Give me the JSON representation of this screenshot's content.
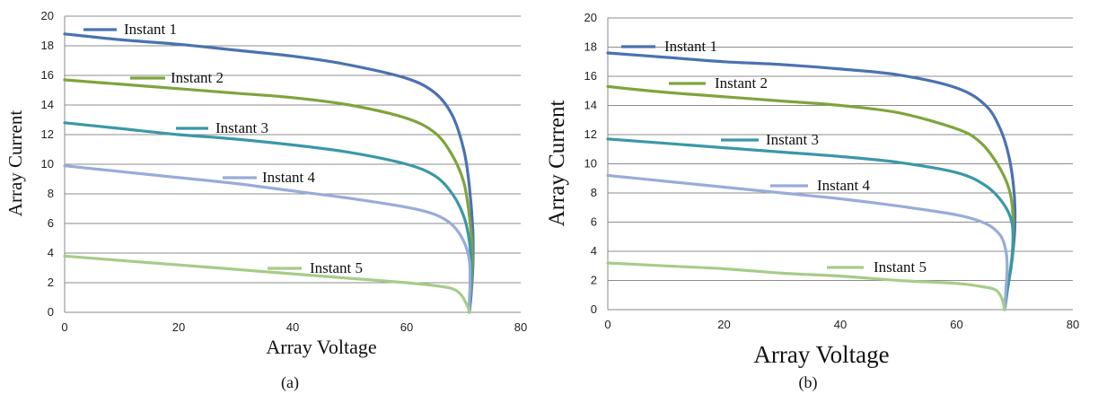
{
  "chart_data": [
    {
      "type": "line",
      "panel_label": "(a)",
      "xlabel": "Array Voltage",
      "ylabel": "Array Current",
      "xlim": [
        0,
        80
      ],
      "ylim": [
        0,
        20
      ],
      "xticks": [
        "0",
        "20",
        "40",
        "60",
        "80"
      ],
      "yticks": [
        "0",
        "2",
        "4",
        "6",
        "8",
        "10",
        "12",
        "14",
        "16",
        "18",
        "20"
      ],
      "grid": "horizontal",
      "legend": "inline labels",
      "series": [
        {
          "name": "Instant 1",
          "color": "#4a72b0",
          "points": [
            [
              0,
              18.8
            ],
            [
              10,
              18.4
            ],
            [
              20,
              18.1
            ],
            [
              30,
              17.7
            ],
            [
              40,
              17.3
            ],
            [
              50,
              16.7
            ],
            [
              60,
              15.8
            ],
            [
              65,
              14.8
            ],
            [
              68,
              13.3
            ],
            [
              70,
              11.0
            ],
            [
              71,
              8.5
            ],
            [
              71.6,
              5.5
            ],
            [
              71.6,
              3.0
            ],
            [
              71.3,
              1.2
            ],
            [
              71.0,
              0
            ]
          ]
        },
        {
          "name": "Instant 2",
          "color": "#7fa43c",
          "points": [
            [
              0,
              15.7
            ],
            [
              10,
              15.4
            ],
            [
              20,
              15.1
            ],
            [
              30,
              14.8
            ],
            [
              40,
              14.5
            ],
            [
              50,
              14.0
            ],
            [
              60,
              13.1
            ],
            [
              65,
              12.1
            ],
            [
              68,
              10.6
            ],
            [
              70,
              8.8
            ],
            [
              71,
              6.5
            ],
            [
              71.5,
              4.0
            ],
            [
              71.4,
              2.0
            ],
            [
              71.1,
              0.8
            ],
            [
              71.0,
              0
            ]
          ]
        },
        {
          "name": "Instant 3",
          "color": "#3a98a8",
          "points": [
            [
              0,
              12.8
            ],
            [
              10,
              12.4
            ],
            [
              20,
              12.0
            ],
            [
              30,
              11.7
            ],
            [
              40,
              11.3
            ],
            [
              50,
              10.8
            ],
            [
              60,
              10.0
            ],
            [
              65,
              9.2
            ],
            [
              68,
              8.0
            ],
            [
              70,
              6.5
            ],
            [
              71,
              4.8
            ],
            [
              71.3,
              3.0
            ],
            [
              71.2,
              1.5
            ],
            [
              71.0,
              0
            ]
          ]
        },
        {
          "name": "Instant 4",
          "color": "#98acd8",
          "points": [
            [
              0,
              9.9
            ],
            [
              10,
              9.5
            ],
            [
              20,
              9.1
            ],
            [
              30,
              8.7
            ],
            [
              40,
              8.2
            ],
            [
              50,
              7.7
            ],
            [
              60,
              7.1
            ],
            [
              65,
              6.6
            ],
            [
              68,
              5.9
            ],
            [
              70,
              4.8
            ],
            [
              71,
              3.5
            ],
            [
              71.1,
              2.0
            ],
            [
              71.0,
              0.8
            ],
            [
              71.0,
              0
            ]
          ]
        },
        {
          "name": "Instant 5",
          "color": "#a6cc8a",
          "points": [
            [
              0,
              3.8
            ],
            [
              10,
              3.5
            ],
            [
              20,
              3.2
            ],
            [
              30,
              2.9
            ],
            [
              40,
              2.6
            ],
            [
              50,
              2.3
            ],
            [
              60,
              2.0
            ],
            [
              65,
              1.8
            ],
            [
              68,
              1.6
            ],
            [
              69.5,
              1.2
            ],
            [
              70.3,
              0.7
            ],
            [
              70.8,
              0.3
            ],
            [
              71.0,
              0
            ]
          ]
        }
      ]
    },
    {
      "type": "line",
      "panel_label": "(b)",
      "xlabel": "Array Voltage",
      "ylabel": "Array Current",
      "xlim": [
        0,
        80
      ],
      "ylim": [
        0,
        20
      ],
      "xticks": [
        "0",
        "20",
        "40",
        "60",
        "80"
      ],
      "yticks": [
        "0",
        "2",
        "4",
        "6",
        "8",
        "10",
        "12",
        "14",
        "16",
        "18",
        "20"
      ],
      "grid": "horizontal",
      "legend": "inline labels",
      "series": [
        {
          "name": "Instant 1",
          "color": "#4a72b0",
          "points": [
            [
              0,
              17.6
            ],
            [
              10,
              17.3
            ],
            [
              20,
              17.0
            ],
            [
              30,
              16.8
            ],
            [
              40,
              16.5
            ],
            [
              50,
              16.1
            ],
            [
              60,
              15.2
            ],
            [
              65,
              14.0
            ],
            [
              67.5,
              12.4
            ],
            [
              69,
              10.5
            ],
            [
              69.9,
              8.0
            ],
            [
              70.0,
              5.5
            ],
            [
              69.4,
              3.0
            ],
            [
              68.6,
              1.2
            ],
            [
              68.2,
              0
            ]
          ]
        },
        {
          "name": "Instant 2",
          "color": "#7fa43c",
          "points": [
            [
              0,
              15.3
            ],
            [
              10,
              14.9
            ],
            [
              20,
              14.6
            ],
            [
              30,
              14.3
            ],
            [
              40,
              14.0
            ],
            [
              50,
              13.5
            ],
            [
              60,
              12.4
            ],
            [
              64,
              11.5
            ],
            [
              67,
              10.0
            ],
            [
              69,
              8.3
            ],
            [
              69.7,
              6.5
            ],
            [
              69.6,
              4.0
            ],
            [
              69.0,
              2.0
            ],
            [
              68.4,
              0.8
            ],
            [
              68.2,
              0
            ]
          ]
        },
        {
          "name": "Instant 3",
          "color": "#3a98a8",
          "points": [
            [
              0,
              11.7
            ],
            [
              10,
              11.4
            ],
            [
              20,
              11.1
            ],
            [
              30,
              10.8
            ],
            [
              40,
              10.5
            ],
            [
              50,
              10.1
            ],
            [
              60,
              9.4
            ],
            [
              65,
              8.5
            ],
            [
              68,
              7.3
            ],
            [
              69.5,
              6.0
            ],
            [
              69.7,
              4.5
            ],
            [
              69.3,
              2.8
            ],
            [
              68.7,
              1.2
            ],
            [
              68.3,
              0
            ]
          ]
        },
        {
          "name": "Instant 4",
          "color": "#98acd8",
          "points": [
            [
              0,
              9.2
            ],
            [
              10,
              8.8
            ],
            [
              20,
              8.4
            ],
            [
              30,
              8.0
            ],
            [
              40,
              7.6
            ],
            [
              50,
              7.1
            ],
            [
              60,
              6.5
            ],
            [
              65,
              5.9
            ],
            [
              67.5,
              5.1
            ],
            [
              68.5,
              4.0
            ],
            [
              68.7,
              2.8
            ],
            [
              68.5,
              1.5
            ],
            [
              68.3,
              0
            ]
          ]
        },
        {
          "name": "Instant 5",
          "color": "#a6cc8a",
          "points": [
            [
              0,
              3.2
            ],
            [
              10,
              3.0
            ],
            [
              20,
              2.8
            ],
            [
              30,
              2.5
            ],
            [
              40,
              2.3
            ],
            [
              50,
              2.0
            ],
            [
              60,
              1.8
            ],
            [
              64,
              1.6
            ],
            [
              66.5,
              1.4
            ],
            [
              67.5,
              1.0
            ],
            [
              68.0,
              0.5
            ],
            [
              68.2,
              0
            ]
          ]
        }
      ]
    }
  ]
}
